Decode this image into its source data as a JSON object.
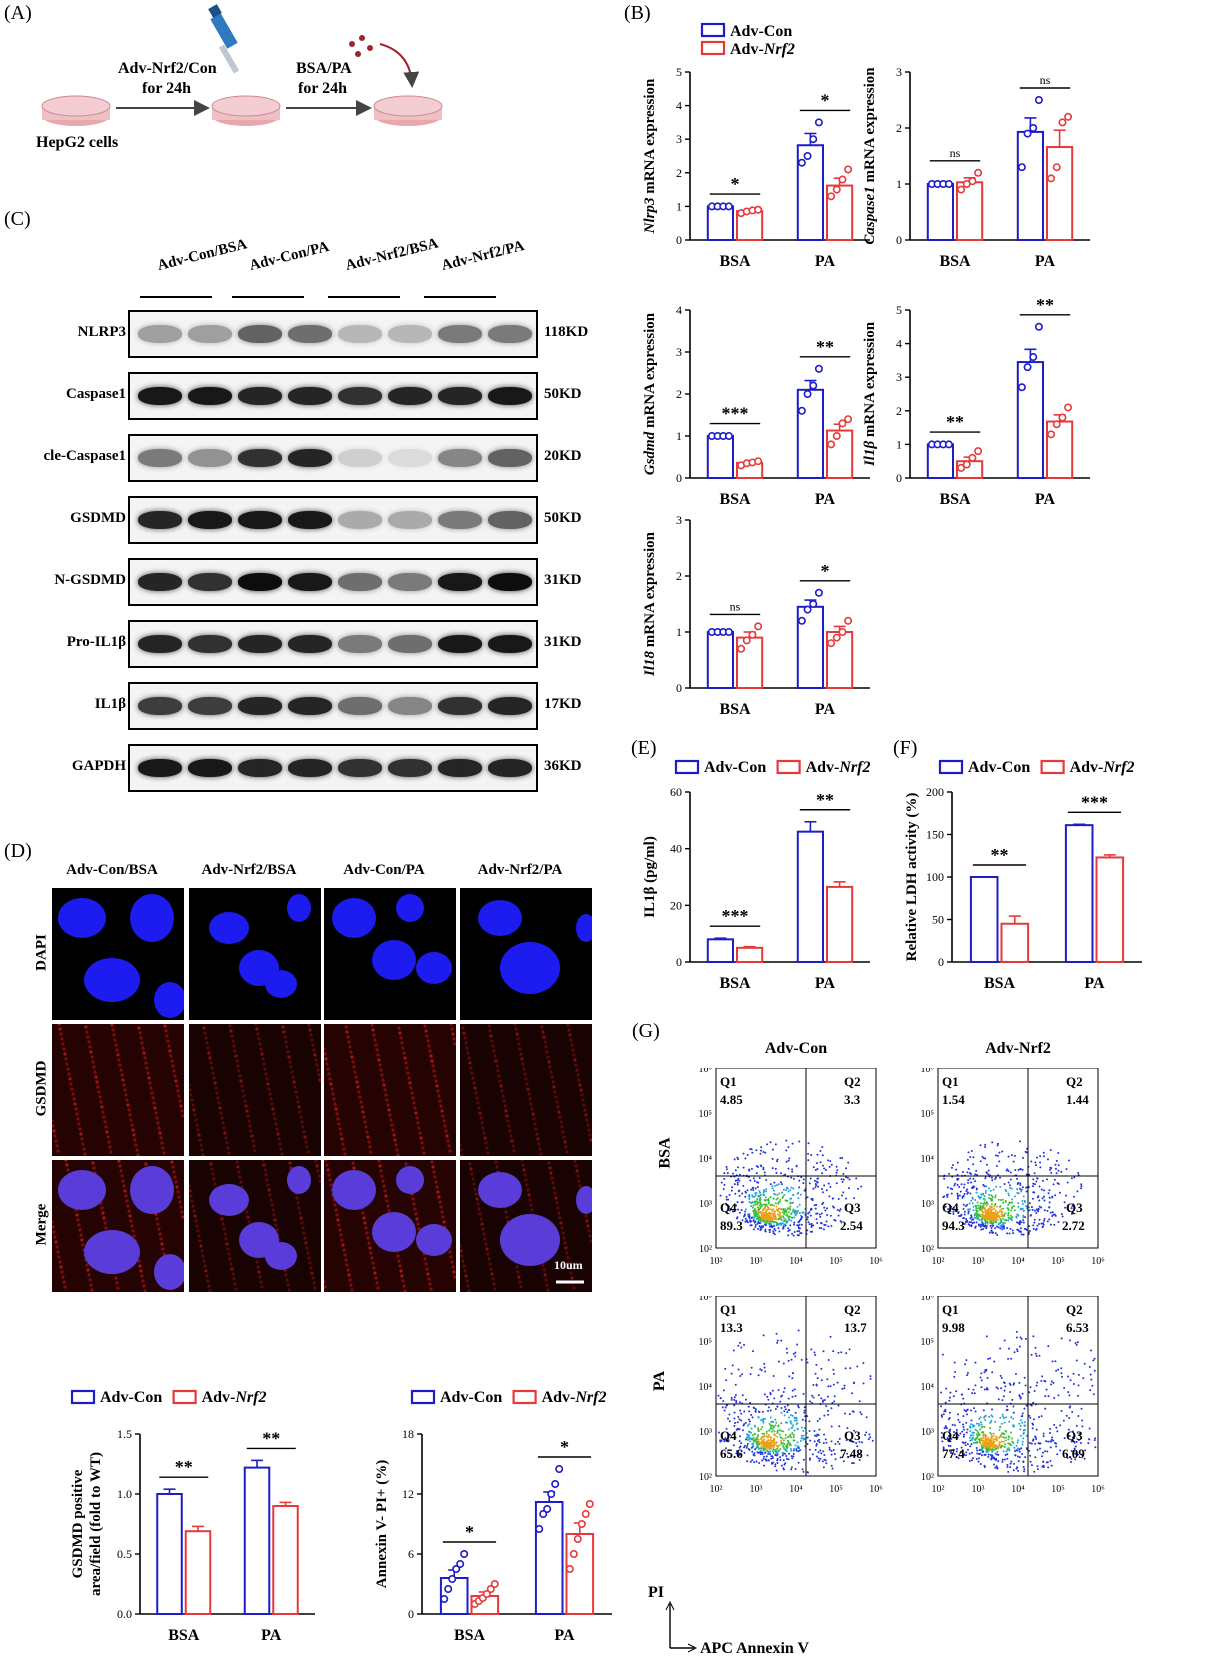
{
  "panels": {
    "A": "(A)",
    "B": "(B)",
    "C": "(C)",
    "D": "(D)",
    "E": "(E)",
    "F": "(F)",
    "G": "(G)"
  },
  "schematic": {
    "step1_line1": "Adv-Nrf2/Con",
    "step1_line2": "for 24h",
    "step2_line1": "BSA/PA",
    "step2_line2": "for 24h",
    "cells_label": "HepG2 cells"
  },
  "legend": {
    "con": "Adv-Con",
    "nrf2": "Adv-Nrf2"
  },
  "colors": {
    "con": "#1c1cc8",
    "nrf2": "#e8393a"
  },
  "western_blot": {
    "lanes": [
      "Adv-Con/BSA",
      "Adv-Con/PA",
      "Adv-Nrf2/BSA",
      "Adv-Nrf2/PA"
    ],
    "rows": [
      {
        "protein": "NLRP3",
        "kd": "118KD"
      },
      {
        "protein": "Caspase1",
        "kd": "50KD"
      },
      {
        "protein": "cle-Caspase1",
        "kd": "20KD"
      },
      {
        "protein": "GSDMD",
        "kd": "50KD"
      },
      {
        "protein": "N-GSDMD",
        "kd": "31KD"
      },
      {
        "protein": "Pro-IL1β",
        "kd": "31KD"
      },
      {
        "protein": "IL1β",
        "kd": "17KD"
      },
      {
        "protein": "GAPDH",
        "kd": "36KD"
      }
    ]
  },
  "immunofluorescence": {
    "columns": [
      "Adv-Con/BSA",
      "Adv-Nrf2/BSA",
      "Adv-Con/PA",
      "Adv-Nrf2/PA"
    ],
    "rows": [
      "DAPI",
      "GSDMD",
      "Merge"
    ],
    "scalebar": "10um"
  },
  "flow": {
    "columns": [
      "Adv-Con",
      "Adv-Nrf2"
    ],
    "rows": [
      "BSA",
      "PA"
    ],
    "xlabel": "APC Annexin V",
    "ylabel": "PI",
    "quadrant_names": [
      "Q1",
      "Q2",
      "Q3",
      "Q4"
    ],
    "quadrants": [
      {
        "q1": "4.85",
        "q2": "3.3",
        "q3": "2.54",
        "q4": "89.3"
      },
      {
        "q1": "1.54",
        "q2": "1.44",
        "q3": "2.72",
        "q4": "94.3"
      },
      {
        "q1": "13.3",
        "q2": "13.7",
        "q3": "7.48",
        "q4": "65.6"
      },
      {
        "q1": "9.98",
        "q2": "6.53",
        "q3": "6.09",
        "q4": "77.4"
      }
    ],
    "ticks": [
      "10²",
      "10³",
      "10⁴",
      "10⁵",
      "10⁶"
    ]
  },
  "chart_data": [
    {
      "id": "nlrp3",
      "type": "bar",
      "ylabel": "Nlrp3 mRNA expression",
      "ylim": [
        0,
        5
      ],
      "ticks": [
        0,
        1,
        2,
        3,
        4,
        5
      ],
      "categories": [
        "BSA",
        "PA"
      ],
      "series": [
        {
          "name": "Adv-Con",
          "values": [
            1.0,
            2.82
          ],
          "err": [
            0.01,
            0.35
          ],
          "points": [
            [
              1,
              1,
              1,
              1
            ],
            [
              2.3,
              2.5,
              3.0,
              3.5
            ]
          ]
        },
        {
          "name": "Adv-Nrf2",
          "values": [
            0.86,
            1.62
          ],
          "err": [
            0.04,
            0.22
          ],
          "points": [
            [
              0.8,
              0.85,
              0.88,
              0.9
            ],
            [
              1.3,
              1.5,
              1.8,
              2.1
            ]
          ]
        }
      ],
      "sig": [
        "*",
        "*"
      ]
    },
    {
      "id": "casp1",
      "type": "bar",
      "ylabel": "Caspase1 mRNA expression",
      "ylim": [
        0,
        3
      ],
      "ticks": [
        0,
        1,
        2,
        3
      ],
      "categories": [
        "BSA",
        "PA"
      ],
      "series": [
        {
          "name": "Adv-Con",
          "values": [
            1.0,
            1.93
          ],
          "err": [
            0.01,
            0.25
          ],
          "points": [
            [
              1,
              1,
              1,
              1
            ],
            [
              1.3,
              1.9,
              2.0,
              2.5
            ]
          ]
        },
        {
          "name": "Adv-Nrf2",
          "values": [
            1.03,
            1.66
          ],
          "err": [
            0.08,
            0.3
          ],
          "points": [
            [
              0.9,
              1.0,
              1.05,
              1.2
            ],
            [
              1.1,
              1.3,
              2.1,
              2.2
            ]
          ]
        }
      ],
      "sig": [
        "ns",
        "ns"
      ]
    },
    {
      "id": "gsdmd",
      "type": "bar",
      "ylabel": "Gsdmd mRNA expression",
      "ylim": [
        0,
        4
      ],
      "ticks": [
        0,
        1,
        2,
        3,
        4
      ],
      "categories": [
        "BSA",
        "PA"
      ],
      "series": [
        {
          "name": "Adv-Con",
          "values": [
            1.0,
            2.1
          ],
          "err": [
            0.01,
            0.22
          ],
          "points": [
            [
              1,
              1,
              1,
              1
            ],
            [
              1.6,
              2.0,
              2.2,
              2.6
            ]
          ]
        },
        {
          "name": "Adv-Nrf2",
          "values": [
            0.36,
            1.13
          ],
          "err": [
            0.03,
            0.15
          ],
          "points": [
            [
              0.3,
              0.35,
              0.37,
              0.4
            ],
            [
              0.8,
              1.0,
              1.3,
              1.4
            ]
          ]
        }
      ],
      "sig": [
        "***",
        "**"
      ]
    },
    {
      "id": "il1b",
      "type": "bar",
      "ylabel": "Il1β mRNA expression",
      "ylim": [
        0,
        5
      ],
      "ticks": [
        0,
        1,
        2,
        3,
        4,
        5
      ],
      "categories": [
        "BSA",
        "PA"
      ],
      "series": [
        {
          "name": "Adv-Con",
          "values": [
            1.0,
            3.45
          ],
          "err": [
            0.01,
            0.38
          ],
          "points": [
            [
              1,
              1,
              1,
              1
            ],
            [
              2.7,
              3.3,
              3.6,
              4.5
            ]
          ]
        },
        {
          "name": "Adv-Nrf2",
          "values": [
            0.5,
            1.68
          ],
          "err": [
            0.12,
            0.2
          ],
          "points": [
            [
              0.3,
              0.4,
              0.6,
              0.8
            ],
            [
              1.3,
              1.6,
              1.8,
              2.1
            ]
          ]
        }
      ],
      "sig": [
        "**",
        "**"
      ]
    },
    {
      "id": "il18",
      "type": "bar",
      "ylabel": "Il18 mRNA expression",
      "ylim": [
        0,
        3
      ],
      "ticks": [
        0,
        1,
        2,
        3
      ],
      "categories": [
        "BSA",
        "PA"
      ],
      "series": [
        {
          "name": "Adv-Con",
          "values": [
            1.0,
            1.45
          ],
          "err": [
            0.01,
            0.12
          ],
          "points": [
            [
              1,
              1,
              1,
              1
            ],
            [
              1.2,
              1.4,
              1.5,
              1.7
            ]
          ]
        },
        {
          "name": "Adv-Nrf2",
          "values": [
            0.9,
            1.0
          ],
          "err": [
            0.1,
            0.1
          ],
          "points": [
            [
              0.7,
              0.85,
              0.95,
              1.1
            ],
            [
              0.8,
              0.9,
              1.0,
              1.2
            ]
          ]
        }
      ],
      "sig": [
        "ns",
        "*"
      ]
    },
    {
      "id": "il1b_elisa",
      "type": "bar",
      "ylabel": "IL1β (pg/ml)",
      "ylim": [
        0,
        60
      ],
      "ticks": [
        0,
        20,
        40,
        60
      ],
      "categories": [
        "BSA",
        "PA"
      ],
      "series": [
        {
          "name": "Adv-Con",
          "values": [
            8.0,
            46.0
          ],
          "err": [
            0.4,
            3.5
          ]
        },
        {
          "name": "Adv-Nrf2",
          "values": [
            5.0,
            26.5
          ],
          "err": [
            0.4,
            1.8
          ]
        }
      ],
      "sig": [
        "***",
        "**"
      ]
    },
    {
      "id": "ldh",
      "type": "bar",
      "ylabel": "Relative LDH activity (%)",
      "ylim": [
        0,
        200
      ],
      "ticks": [
        0,
        50,
        100,
        150,
        200
      ],
      "categories": [
        "BSA",
        "PA"
      ],
      "series": [
        {
          "name": "Adv-Con",
          "values": [
            100,
            161
          ],
          "err": [
            0,
            1
          ]
        },
        {
          "name": "Adv-Nrf2",
          "values": [
            45,
            123
          ],
          "err": [
            9,
            3
          ]
        }
      ],
      "sig": [
        "**",
        "***"
      ]
    },
    {
      "id": "gsdmd_area",
      "type": "bar",
      "ylabel": "GSDMD positive area/field (fold to WT)",
      "ylim": [
        0,
        1.5
      ],
      "ticks": [
        "0.0",
        "0.5",
        "1.0",
        "1.5"
      ],
      "categories": [
        "BSA",
        "PA"
      ],
      "series": [
        {
          "name": "Adv-Con",
          "values": [
            1.0,
            1.22
          ],
          "err": [
            0.04,
            0.06
          ]
        },
        {
          "name": "Adv-Nrf2",
          "values": [
            0.69,
            0.9
          ],
          "err": [
            0.04,
            0.03
          ]
        }
      ],
      "sig": [
        "**",
        "**"
      ]
    },
    {
      "id": "annexin",
      "type": "bar",
      "ylabel": "Annexin V- PI+ (%)",
      "ylim": [
        0,
        18
      ],
      "ticks": [
        0,
        6,
        12,
        18
      ],
      "categories": [
        "BSA",
        "PA"
      ],
      "series": [
        {
          "name": "Adv-Con",
          "values": [
            3.6,
            11.2
          ],
          "err": [
            0.8,
            1.0
          ],
          "points": [
            [
              1.5,
              2.5,
              3.5,
              4.5,
              5.0,
              6.0
            ],
            [
              8.5,
              10.0,
              10.5,
              12.0,
              13.0,
              14.5
            ]
          ]
        },
        {
          "name": "Adv-Nrf2",
          "values": [
            1.8,
            8.0
          ],
          "err": [
            0.4,
            1.1
          ],
          "points": [
            [
              1.0,
              1.3,
              1.6,
              2.0,
              2.5,
              3.0
            ],
            [
              4.5,
              6.0,
              7.5,
              9.0,
              10.0,
              11.0
            ]
          ]
        }
      ],
      "sig": [
        "*",
        "*"
      ]
    }
  ]
}
